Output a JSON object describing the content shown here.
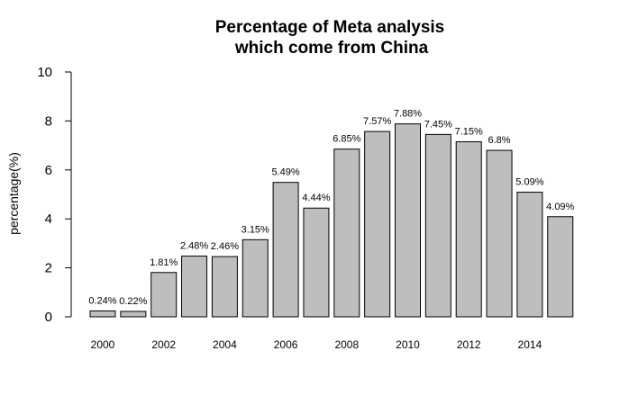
{
  "chart_data": {
    "type": "bar",
    "title_lines": [
      "Percentage of Meta analysis",
      "which come from China"
    ],
    "xlabel": "",
    "ylabel": "percentage(%)",
    "ylim": [
      0,
      10
    ],
    "yticks": [
      0,
      2,
      4,
      6,
      8,
      10
    ],
    "categories": [
      "2000",
      "2001",
      "2002",
      "2003",
      "2004",
      "2005",
      "2006",
      "2007",
      "2008",
      "2009",
      "2010",
      "2011",
      "2012",
      "2013",
      "2014",
      "2015"
    ],
    "values": [
      0.24,
      0.22,
      1.81,
      2.48,
      2.46,
      3.15,
      5.49,
      4.44,
      6.85,
      7.57,
      7.88,
      7.45,
      7.15,
      6.8,
      5.09,
      4.09
    ],
    "data_labels": [
      "0.24%",
      "0.22%",
      "1.81%",
      "2.48%",
      "2.46%",
      "3.15%",
      "5.49%",
      "4.44%",
      "6.85%",
      "7.57%",
      "7.88%",
      "7.45%",
      "7.15%",
      "6.8%",
      "5.09%",
      "4.09%"
    ],
    "xtick_labels": [
      "2000",
      "2002",
      "2004",
      "2006",
      "2008",
      "2010",
      "2012",
      "2014"
    ],
    "bar_color": "#bebebe",
    "grid": false,
    "legend": "none"
  }
}
